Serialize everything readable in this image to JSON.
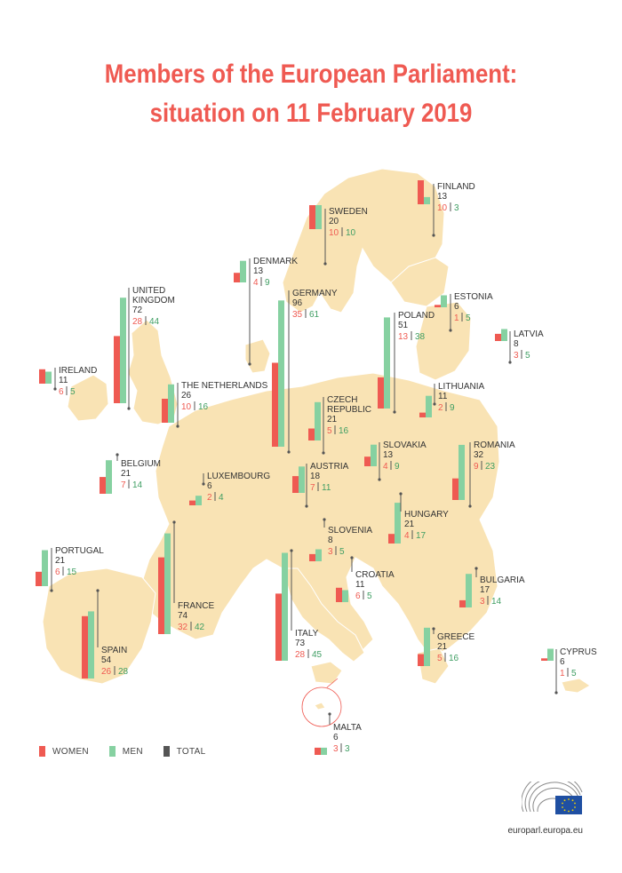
{
  "title_lines": [
    "Members of the European Parliament:",
    "situation on 11 February 2019"
  ],
  "colors": {
    "women": "#ef5a52",
    "men": "#86d1a1",
    "total": "#555555",
    "map": "#f9e3b4",
    "title": "#ef5a52"
  },
  "legend": {
    "women": "WOMEN",
    "men": "MEN",
    "total": "TOTAL"
  },
  "footer": {
    "url": "europarl.europa.eu"
  },
  "chart_data": {
    "type": "bar",
    "series": [
      {
        "name": "WOMEN",
        "key": "women"
      },
      {
        "name": "MEN",
        "key": "men"
      }
    ],
    "countries": [
      {
        "name": "FINLAND",
        "total": "13",
        "women": "10",
        "men": "3"
      },
      {
        "name": "SWEDEN",
        "total": "20",
        "women": "10",
        "men": "10"
      },
      {
        "name": "DENMARK",
        "total": "13",
        "women": "4",
        "men": "9"
      },
      {
        "name": "ESTONIA",
        "total": "6",
        "women": "1",
        "men": "5"
      },
      {
        "name": "UNITED KINGDOM",
        "total": "72",
        "women": "28",
        "men": "44"
      },
      {
        "name": "GERMANY",
        "total": "96",
        "women": "35",
        "men": "61"
      },
      {
        "name": "POLAND",
        "total": "51",
        "women": "13",
        "men": "38"
      },
      {
        "name": "LATVIA",
        "total": "8",
        "women": "3",
        "men": "5"
      },
      {
        "name": "IRELAND",
        "total": "11",
        "women": "6",
        "men": "5"
      },
      {
        "name": "THE NETHERLANDS",
        "total": "26",
        "women": "10",
        "men": "16"
      },
      {
        "name": "LITHUANIA",
        "total": "11",
        "women": "2",
        "men": "9"
      },
      {
        "name": "CZECH REPUBLIC",
        "total": "21",
        "women": "5",
        "men": "16"
      },
      {
        "name": "BELGIUM",
        "total": "21",
        "women": "7",
        "men": "14"
      },
      {
        "name": "SLOVAKIA",
        "total": "13",
        "women": "4",
        "men": "9"
      },
      {
        "name": "ROMANIA",
        "total": "32",
        "women": "9",
        "men": "23"
      },
      {
        "name": "LUXEMBOURG",
        "total": "6",
        "women": "2",
        "men": "4"
      },
      {
        "name": "AUSTRIA",
        "total": "18",
        "women": "7",
        "men": "11"
      },
      {
        "name": "HUNGARY",
        "total": "21",
        "women": "4",
        "men": "17"
      },
      {
        "name": "PORTUGAL",
        "total": "21",
        "women": "6",
        "men": "15"
      },
      {
        "name": "SLOVENIA",
        "total": "8",
        "women": "3",
        "men": "5"
      },
      {
        "name": "CROATIA",
        "total": "11",
        "women": "6",
        "men": "5"
      },
      {
        "name": "BULGARIA",
        "total": "17",
        "women": "3",
        "men": "14"
      },
      {
        "name": "FRANCE",
        "total": "74",
        "women": "32",
        "men": "42"
      },
      {
        "name": "SPAIN",
        "total": "54",
        "women": "26",
        "men": "28"
      },
      {
        "name": "ITALY",
        "total": "73",
        "women": "28",
        "men": "45"
      },
      {
        "name": "GREECE",
        "total": "21",
        "women": "5",
        "men": "16"
      },
      {
        "name": "CYPRUS",
        "total": "6",
        "women": "1",
        "men": "5"
      },
      {
        "name": "MALTA",
        "total": "6",
        "women": "3",
        "men": "3"
      }
    ]
  }
}
